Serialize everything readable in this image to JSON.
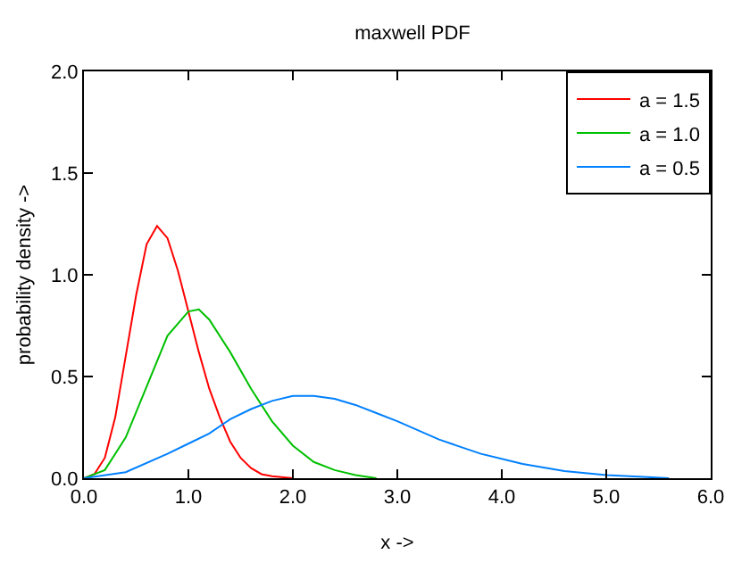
{
  "chart_data": {
    "type": "line",
    "title": "maxwell PDF",
    "xlabel": "x ->",
    "ylabel": "probability density ->",
    "xlim": [
      0,
      6
    ],
    "ylim": [
      0,
      2
    ],
    "xticks": [
      {
        "value": 0,
        "label": "0.0"
      },
      {
        "value": 1,
        "label": "1.0"
      },
      {
        "value": 2,
        "label": "2.0"
      },
      {
        "value": 3,
        "label": "3.0"
      },
      {
        "value": 4,
        "label": "4.0"
      },
      {
        "value": 5,
        "label": "5.0"
      },
      {
        "value": 6,
        "label": "6.0"
      }
    ],
    "yticks": [
      {
        "value": 0,
        "label": "0.0"
      },
      {
        "value": 0.5,
        "label": "0.5"
      },
      {
        "value": 1,
        "label": "1.0"
      },
      {
        "value": 1.5,
        "label": "1.5"
      },
      {
        "value": 2,
        "label": "2.0"
      }
    ],
    "grid": false,
    "legend": "top right",
    "marker": "none",
    "line_style": "solid",
    "series": [
      {
        "name": "a = 1.5",
        "color": "#ff0000",
        "x": [
          0,
          0.1,
          0.2,
          0.3,
          0.4,
          0.5,
          0.6,
          0.7,
          0.8,
          0.9,
          1.0,
          1.1,
          1.2,
          1.3,
          1.4,
          1.5,
          1.6,
          1.7,
          1.8,
          2.0
        ],
        "values": [
          0,
          0.02,
          0.1,
          0.3,
          0.6,
          0.9,
          1.15,
          1.24,
          1.18,
          1.02,
          0.82,
          0.62,
          0.44,
          0.3,
          0.18,
          0.1,
          0.05,
          0.02,
          0.01,
          0
        ]
      },
      {
        "name": "a = 1.0",
        "color": "#00c000",
        "x": [
          0,
          0.2,
          0.4,
          0.6,
          0.8,
          1.0,
          1.1,
          1.2,
          1.4,
          1.6,
          1.8,
          2.0,
          2.2,
          2.4,
          2.6,
          2.8
        ],
        "values": [
          0,
          0.04,
          0.2,
          0.45,
          0.7,
          0.82,
          0.83,
          0.78,
          0.62,
          0.44,
          0.28,
          0.16,
          0.08,
          0.04,
          0.015,
          0
        ]
      },
      {
        "name": "a = 0.5",
        "color": "#0080ff",
        "x": [
          0,
          0.4,
          0.8,
          1.0,
          1.2,
          1.4,
          1.6,
          1.8,
          2.0,
          2.2,
          2.4,
          2.6,
          2.8,
          3.0,
          3.4,
          3.8,
          4.2,
          4.6,
          5.0,
          5.4,
          5.6
        ],
        "values": [
          0,
          0.03,
          0.12,
          0.17,
          0.22,
          0.29,
          0.34,
          0.38,
          0.405,
          0.405,
          0.39,
          0.36,
          0.32,
          0.28,
          0.19,
          0.12,
          0.07,
          0.035,
          0.015,
          0.005,
          0
        ]
      }
    ]
  }
}
